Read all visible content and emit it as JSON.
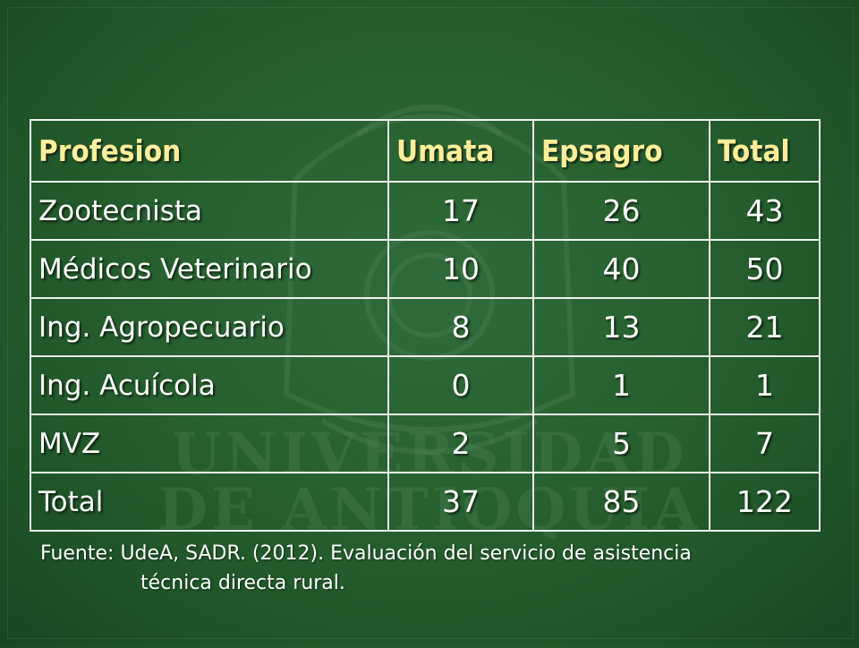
{
  "table": {
    "headers": [
      "Profesion",
      "Umata",
      "Epsagro",
      "Total"
    ],
    "rows": [
      {
        "profesion": "Zootecnista",
        "umata": "17",
        "epsagro": "26",
        "total": "43"
      },
      {
        "profesion": "Médicos Veterinario",
        "umata": "10",
        "epsagro": "40",
        "total": "50"
      },
      {
        "profesion": "Ing. Agropecuario",
        "umata": "8",
        "epsagro": "13",
        "total": "21"
      },
      {
        "profesion": "Ing. Acuícola",
        "umata": "0",
        "epsagro": "1",
        "total": "1"
      },
      {
        "profesion": "MVZ",
        "umata": "2",
        "epsagro": "5",
        "total": "7"
      },
      {
        "profesion": "Total",
        "umata": "37",
        "epsagro": "85",
        "total": "122"
      }
    ]
  },
  "source": {
    "line1": "Fuente: UdeA, SADR. (2012). Evaluación del servicio de asistencia",
    "line2": "técnica directa rural."
  },
  "watermark": {
    "line1": "UNIVERSIDAD",
    "line2": "DE ANTIOQUIA"
  },
  "colors": {
    "background": "#27602f",
    "header_text": "#ffee99",
    "body_text": "#ffffff",
    "border": "#f2f2f2"
  }
}
